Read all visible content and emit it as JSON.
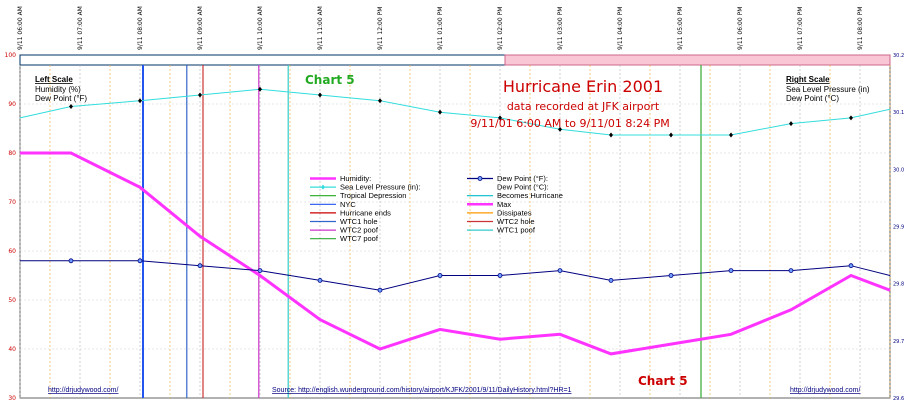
{
  "chart_data": {
    "type": "line",
    "title": "Hurricane Erin 2001",
    "subtitle_lines": [
      "data recorded at JFK airport",
      "9/11/01 6:00 AM to 9/11/01 8:24 PM"
    ],
    "chart_label": "Chart 5",
    "x_tick_labels": [
      "9/11 06:00 AM",
      "9/11 07:00 AM",
      "9/11 08:00 AM",
      "9/11 09:00 AM",
      "9/11 10:00 AM",
      "9/11 11:00 AM",
      "9/11 12:00 PM",
      "9/11 01:00 PM",
      "9/11 02:00 PM",
      "9/11 03:00 PM",
      "9/11 04:00 PM",
      "9/11 05:00 PM",
      "9/11 06:00 PM",
      "9/11 07:00 PM",
      "9/11 08:00 PM"
    ],
    "xlim": [
      6.0,
      20.5
    ],
    "ylim_left": [
      30,
      100
    ],
    "y_ticks_left": [
      30,
      40,
      50,
      60,
      70,
      80,
      90,
      100
    ],
    "ylim_right": [
      29.6,
      30.2
    ],
    "y_ticks_right": [
      "29.6",
      "29.7",
      "29.8",
      "29.9",
      "30.0",
      "30.1",
      "30.2"
    ],
    "left_scale": {
      "title": "Left Scale",
      "lines": [
        "Humidity (%)",
        "Dew Point (°F)"
      ]
    },
    "right_scale": {
      "title": "Right Scale",
      "lines": [
        "Sea Level Pressure (in)",
        "Dew Point (°C)"
      ]
    },
    "series": [
      {
        "name": "Humidity:",
        "axis": "left",
        "color": "#ff33ff",
        "x": [
          6.0,
          6.85,
          8.0,
          9.0,
          10.0,
          11.0,
          12.0,
          13.0,
          14.0,
          15.0,
          15.85,
          16.85,
          17.85,
          18.85,
          19.85,
          20.5
        ],
        "y": [
          80,
          80,
          73,
          63,
          55,
          46,
          40,
          44,
          42,
          43,
          39,
          41,
          43,
          48,
          55,
          52
        ]
      },
      {
        "name": "Dew Point (°F):",
        "axis": "left",
        "color": "#000080",
        "x": [
          6.0,
          6.85,
          8.0,
          9.0,
          10.0,
          11.0,
          12.0,
          13.0,
          14.0,
          15.0,
          15.85,
          16.85,
          17.85,
          18.85,
          19.85,
          20.5
        ],
        "y": [
          58,
          58,
          58,
          57,
          56,
          54,
          52,
          55,
          55,
          56,
          54,
          55,
          56,
          56,
          57,
          55
        ]
      },
      {
        "name": "Sea Level Pressure (in):",
        "axis": "right",
        "color": "#33dddd",
        "x": [
          6.0,
          6.85,
          8.0,
          9.0,
          10.0,
          11.0,
          12.0,
          13.0,
          14.0,
          15.0,
          15.85,
          16.85,
          17.85,
          18.85,
          19.85,
          20.5
        ],
        "y": [
          30.09,
          30.11,
          30.12,
          30.13,
          30.14,
          30.13,
          30.12,
          30.1,
          30.09,
          30.07,
          30.06,
          30.06,
          30.06,
          30.08,
          30.09,
          30.105
        ]
      }
    ],
    "event_lines": [
      {
        "name": "Tropical Depression",
        "color": "#22aa22"
      },
      {
        "name": "Becomes Hurricane",
        "color": "#00bbcc"
      },
      {
        "name": "NYC",
        "color": "#2255ee"
      },
      {
        "name": "Max",
        "color": "#ff33ff"
      },
      {
        "name": "Hurricane ends",
        "color": "#cc0000"
      },
      {
        "name": "Dissipates",
        "color": "#ff9900"
      },
      {
        "name": "WTC1 hole",
        "color": "#3366cc"
      },
      {
        "name": "WTC2 hole",
        "color": "#cc3333"
      },
      {
        "name": "WTC2 poof",
        "color": "#cc33cc"
      },
      {
        "name": "WTC1 poof",
        "color": "#33cccc"
      },
      {
        "name": "WTC7 poof",
        "color": "#33aa33"
      }
    ],
    "event_marks": [
      {
        "x": 8.05,
        "color": "#2255ee"
      },
      {
        "x": 8.78,
        "color": "#3366cc"
      },
      {
        "x": 9.05,
        "color": "#cc3333"
      },
      {
        "x": 9.98,
        "color": "#cc33cc"
      },
      {
        "x": 10.47,
        "color": "#33cccc"
      },
      {
        "x": 17.35,
        "color": "#33aa33"
      }
    ],
    "legend_entries": [
      {
        "name": "Humidity:",
        "color": "#ff33ff",
        "style": "thick"
      },
      {
        "name": "Dew Point (°F):",
        "color": "#000080",
        "style": "circle"
      },
      {
        "name": "Sea Level Pressure (in):",
        "color": "#33dddd",
        "style": "star"
      },
      {
        "name": "Dew Point (°C):",
        "color": "",
        "style": "none"
      },
      {
        "name": "Tropical Depression",
        "color": "#22aa22",
        "style": "line"
      },
      {
        "name": "Becomes Hurricane",
        "color": "#00bbcc",
        "style": "line"
      },
      {
        "name": "NYC",
        "color": "#2255ee",
        "style": "line"
      },
      {
        "name": "Max",
        "color": "#ff33ff",
        "style": "thick"
      },
      {
        "name": "Hurricane ends",
        "color": "#cc0000",
        "style": "line"
      },
      {
        "name": "Dissipates",
        "color": "#ff9900",
        "style": "line"
      },
      {
        "name": "WTC1 hole",
        "color": "#3366cc",
        "style": "line"
      },
      {
        "name": "WTC2 hole",
        "color": "#cc3333",
        "style": "line"
      },
      {
        "name": "WTC2 poof",
        "color": "#cc33cc",
        "style": "line"
      },
      {
        "name": "WTC1 poof",
        "color": "#33cccc",
        "style": "line"
      },
      {
        "name": "WTC7 poof",
        "color": "#33aa33",
        "style": "line"
      }
    ],
    "grid": true,
    "legend_position": "center",
    "footer": {
      "left_link": "http://drjudywood.com/",
      "source": "Source:  http://english.wunderground.com/history/airport/KJFK/2001/9/11/DailyHistory.html?HR=1",
      "right_link": "http://drjudywood.com/"
    }
  }
}
